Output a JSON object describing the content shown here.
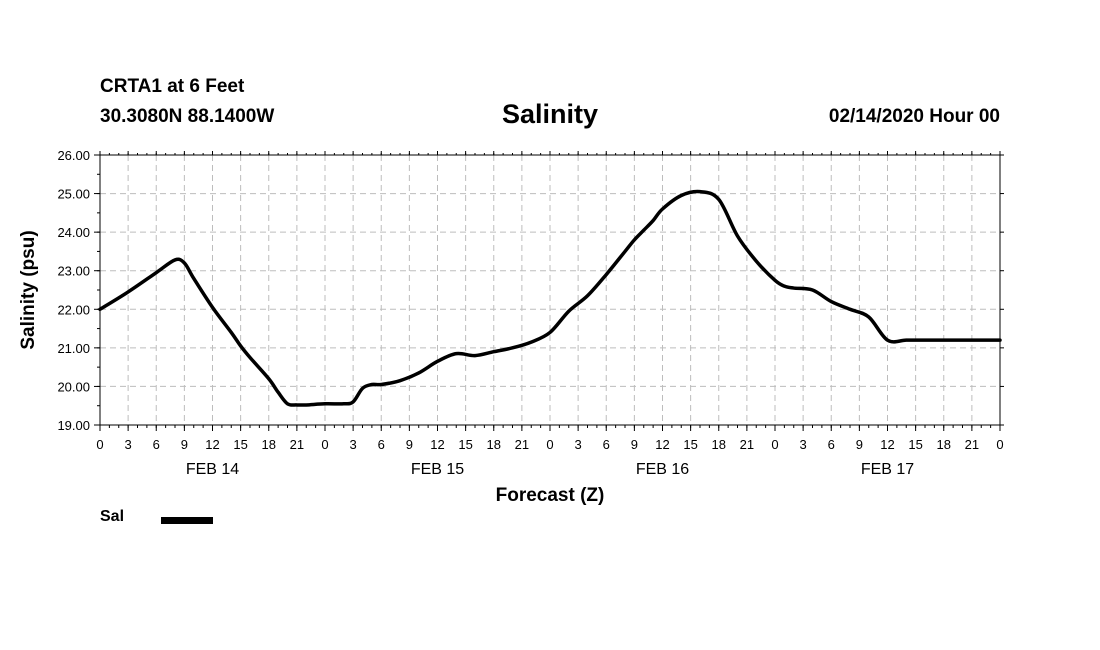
{
  "header": {
    "station": "CRTA1 at 6 Feet",
    "coords": "30.3080N 88.1400W",
    "cycle": "02/14/2020 Hour 00"
  },
  "chart_data": {
    "type": "line",
    "title": "Salinity",
    "xlabel": "Forecast (Z)",
    "ylabel": "Salinity (psu)",
    "xlim": [
      0,
      96
    ],
    "ylim": [
      19,
      26
    ],
    "yticks": [
      "19.00",
      "20.00",
      "21.00",
      "22.00",
      "23.00",
      "24.00",
      "25.00",
      "26.00"
    ],
    "xtick_labels": [
      "0",
      "3",
      "6",
      "9",
      "12",
      "15",
      "18",
      "21",
      "0",
      "3",
      "6",
      "9",
      "12",
      "15",
      "18",
      "21",
      "0",
      "3",
      "6",
      "9",
      "12",
      "15",
      "18",
      "21",
      "0",
      "3",
      "6",
      "9",
      "12",
      "15",
      "18",
      "21",
      "0"
    ],
    "day_labels": [
      {
        "label": "FEB 14",
        "hour": 12
      },
      {
        "label": "FEB 15",
        "hour": 36
      },
      {
        "label": "FEB 16",
        "hour": 60
      },
      {
        "label": "FEB 17",
        "hour": 84
      }
    ],
    "grid": true,
    "legend_placement": "bottom-left",
    "series": [
      {
        "name": "Sal",
        "color": "#000000",
        "x": [
          0,
          3,
          6,
          8,
          9,
          10,
          12,
          14,
          15,
          16,
          18,
          19,
          20,
          21,
          22,
          24,
          26,
          27,
          28,
          29,
          30,
          32,
          34,
          36,
          38,
          40,
          42,
          44,
          46,
          48,
          50,
          52,
          54,
          56,
          57,
          58,
          59,
          60,
          62,
          64,
          66,
          68,
          70,
          72,
          73,
          74,
          76,
          78,
          80,
          82,
          84,
          86,
          88,
          90,
          92,
          94,
          96
        ],
        "y": [
          22.0,
          22.45,
          22.95,
          23.28,
          23.2,
          22.8,
          22.05,
          21.4,
          21.05,
          20.75,
          20.2,
          19.85,
          19.55,
          19.52,
          19.52,
          19.55,
          19.55,
          19.6,
          19.95,
          20.05,
          20.05,
          20.15,
          20.35,
          20.65,
          20.85,
          20.8,
          20.9,
          21.0,
          21.15,
          21.4,
          21.95,
          22.35,
          22.9,
          23.5,
          23.8,
          24.05,
          24.3,
          24.6,
          24.95,
          25.05,
          24.85,
          23.9,
          23.25,
          22.75,
          22.6,
          22.55,
          22.5,
          22.2,
          22.0,
          21.8,
          21.2,
          21.2,
          21.2,
          21.2,
          21.2,
          21.2,
          21.2
        ]
      }
    ]
  }
}
